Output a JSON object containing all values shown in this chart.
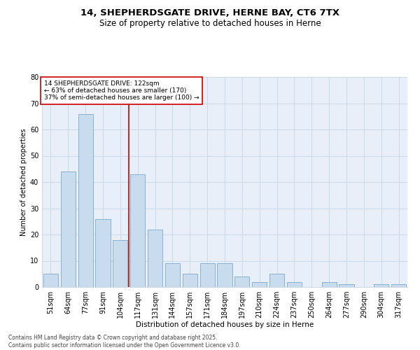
{
  "title1": "14, SHEPHERDSGATE DRIVE, HERNE BAY, CT6 7TX",
  "title2": "Size of property relative to detached houses in Herne",
  "xlabel": "Distribution of detached houses by size in Herne",
  "ylabel": "Number of detached properties",
  "categories": [
    "51sqm",
    "64sqm",
    "77sqm",
    "91sqm",
    "104sqm",
    "117sqm",
    "131sqm",
    "144sqm",
    "157sqm",
    "171sqm",
    "184sqm",
    "197sqm",
    "210sqm",
    "224sqm",
    "237sqm",
    "250sqm",
    "264sqm",
    "277sqm",
    "290sqm",
    "304sqm",
    "317sqm"
  ],
  "values": [
    5,
    44,
    66,
    26,
    18,
    43,
    22,
    9,
    5,
    9,
    9,
    4,
    2,
    5,
    2,
    0,
    2,
    1,
    0,
    1,
    1
  ],
  "bar_color": "#c9dced",
  "bar_edge_color": "#7aaace",
  "bar_edge_width": 0.6,
  "vline_x_index": 5,
  "vline_color": "#cc0000",
  "annotation_box_text": "14 SHEPHERDSGATE DRIVE: 122sqm\n← 63% of detached houses are smaller (170)\n37% of semi-detached houses are larger (100) →",
  "annotation_box_color": "#cc0000",
  "ylim": [
    0,
    80
  ],
  "yticks": [
    0,
    10,
    20,
    30,
    40,
    50,
    60,
    70,
    80
  ],
  "grid_color": "#ccd9e8",
  "bg_color": "#e8eff8",
  "footer_text": "Contains HM Land Registry data © Crown copyright and database right 2025.\nContains public sector information licensed under the Open Government Licence v3.0.",
  "title1_fontsize": 9.5,
  "title2_fontsize": 8.5,
  "xlabel_fontsize": 7.5,
  "ylabel_fontsize": 7.0,
  "tick_fontsize": 7.0,
  "annot_fontsize": 6.5,
  "footer_fontsize": 5.5
}
